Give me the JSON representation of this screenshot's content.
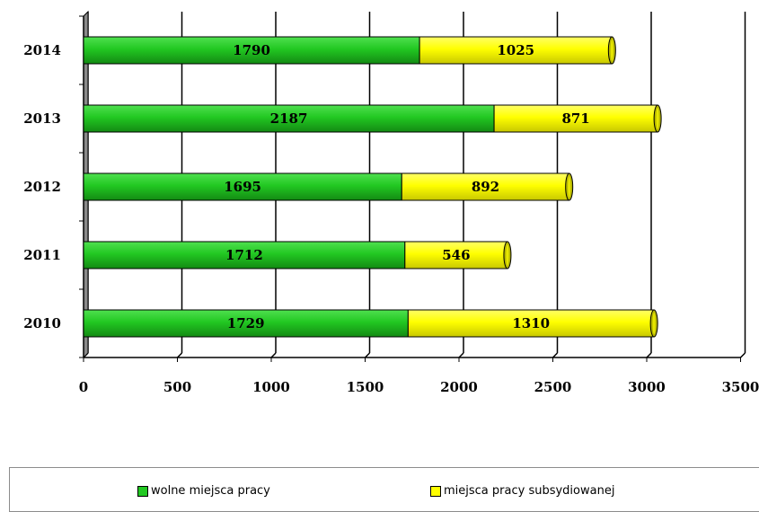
{
  "chart_data": {
    "type": "bar",
    "orientation": "horizontal",
    "stacked": true,
    "categories": [
      "2010",
      "2011",
      "2012",
      "2013",
      "2014"
    ],
    "series": [
      {
        "name": "wolne miejsca pracy",
        "color": "#22c822",
        "values": [
          1729,
          1712,
          1695,
          2187,
          1790
        ]
      },
      {
        "name": "miejsca pracy subsydiowanej",
        "color": "#ffff00",
        "values": [
          1310,
          546,
          892,
          871,
          1025
        ]
      }
    ],
    "xlim": [
      0,
      3500
    ],
    "xticks": [
      "0",
      "500",
      "1000",
      "1500",
      "2000",
      "2500",
      "3000",
      "3500"
    ],
    "grid": true,
    "legend_position": "bottom",
    "title": "",
    "xlabel": "",
    "ylabel": ""
  }
}
